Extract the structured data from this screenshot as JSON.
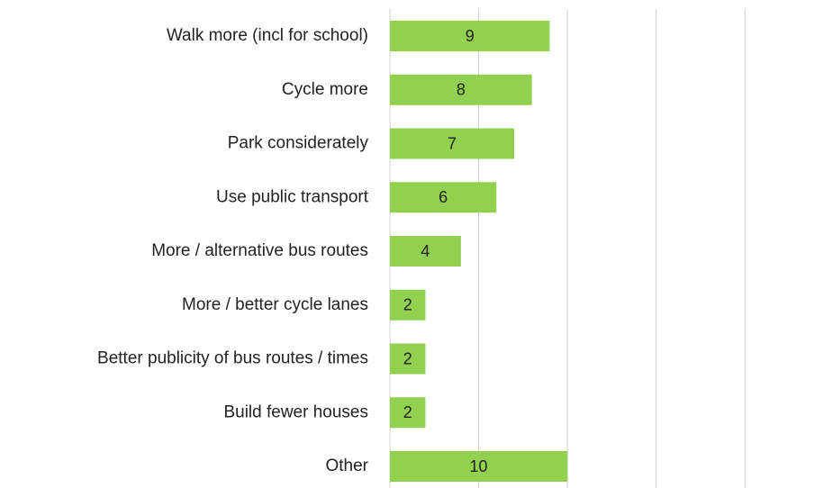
{
  "chart_data": {
    "type": "bar",
    "orientation": "horizontal",
    "categories": [
      "Walk more (incl for school)",
      "Cycle more",
      "Park considerately",
      "Use public transport",
      "More / alternative bus routes",
      "More / better cycle lanes",
      "Better publicity of bus routes / times",
      "Build fewer houses",
      "Other"
    ],
    "values": [
      9,
      8,
      7,
      6,
      4,
      2,
      2,
      2,
      10
    ],
    "color": "#92d050",
    "xlim": [
      0,
      24.4
    ],
    "xticks": [
      0,
      5,
      10,
      15,
      20
    ],
    "grid": true
  }
}
